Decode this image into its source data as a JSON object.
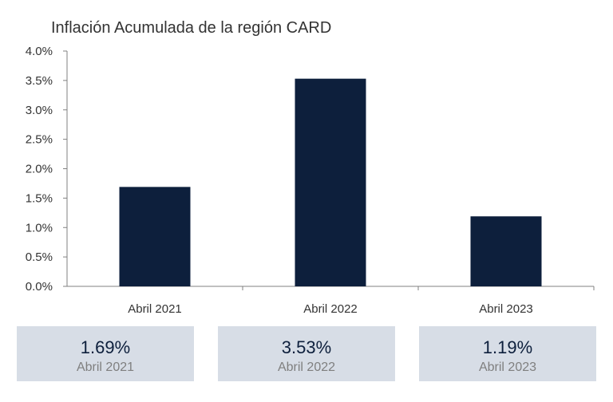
{
  "chart_data": {
    "type": "bar",
    "title": "Inflación Acumulada de la región CARD",
    "categories": [
      "Abril 2021",
      "Abril 2022",
      "Abril 2023"
    ],
    "values": [
      1.69,
      3.53,
      1.19
    ],
    "ylim": [
      0,
      4.0
    ],
    "yticks": [
      "0.0%",
      "0.5%",
      "1.0%",
      "1.5%",
      "2.0%",
      "2.5%",
      "3.0%",
      "3.5%",
      "4.0%"
    ],
    "bar_color": "#0d1f3c",
    "grid": false,
    "xlabel": "",
    "ylabel": ""
  },
  "summary": [
    {
      "value": "1.69%",
      "label": "Abril 2021"
    },
    {
      "value": "3.53%",
      "label": "Abril 2022"
    },
    {
      "value": "1.19%",
      "label": "Abril 2023"
    }
  ],
  "colors": {
    "summary_bg": "#d7dde6",
    "summary_value": "#0d1f3c",
    "summary_label": "#7f7f7f"
  }
}
